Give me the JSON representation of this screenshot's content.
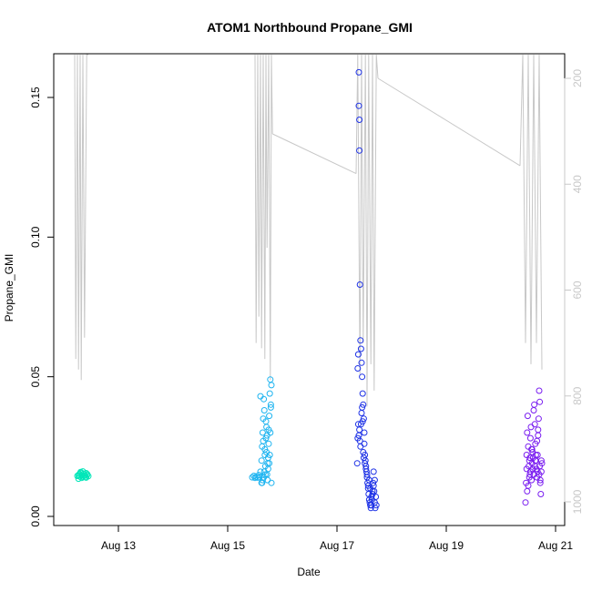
{
  "chart_data": {
    "type": "scatter",
    "title": "ATOM1 Northbound Propane_GMI",
    "xlabel": "Date",
    "ylabel": "Propane_GMI",
    "x_range_days": [
      12.1,
      21.2
    ],
    "x_ticks": [
      {
        "day": 13,
        "label": "Aug 13"
      },
      {
        "day": 15,
        "label": "Aug 15"
      },
      {
        "day": 17,
        "label": "Aug 17"
      },
      {
        "day": 19,
        "label": "Aug 19"
      },
      {
        "day": 21,
        "label": "Aug 21"
      }
    ],
    "ylim": [
      0.0,
      0.165
    ],
    "y_ticks": [
      {
        "value": 0.0,
        "label": "0.00"
      },
      {
        "value": 0.05,
        "label": "0.05"
      },
      {
        "value": 0.1,
        "label": "0.10"
      },
      {
        "value": 0.15,
        "label": "0.15"
      }
    ],
    "y2_reversed": true,
    "y2lim": [
      1020,
      150
    ],
    "y2_ticks": [
      {
        "value": 200,
        "label": "200"
      },
      {
        "value": 400,
        "label": "400"
      },
      {
        "value": 600,
        "label": "600"
      },
      {
        "value": 800,
        "label": "800"
      },
      {
        "value": 1000,
        "label": "1000"
      }
    ],
    "colors": {
      "group1": "#00E6B8",
      "group2": "#1EB4F0",
      "group3": "#1E32E6",
      "group4": "#7A1EF0",
      "line": "#C8C8C8",
      "secondary_axis": "#C8C8C8"
    },
    "groups": [
      {
        "color_key": "group1",
        "x_days": [
          12.25,
          12.27,
          12.29,
          12.31,
          12.33,
          12.35,
          12.37,
          12.39,
          12.41,
          12.43,
          12.45,
          12.27,
          12.31,
          12.35,
          12.39,
          12.43,
          12.29,
          12.33,
          12.37,
          12.41
        ],
        "y": [
          0.0145,
          0.0148,
          0.0143,
          0.0156,
          0.015,
          0.0142,
          0.0153,
          0.0147,
          0.0139,
          0.0151,
          0.0144,
          0.0135,
          0.0159,
          0.0161,
          0.0141,
          0.0149,
          0.0152,
          0.0138,
          0.0146,
          0.0155
        ]
      },
      {
        "color_key": "group2",
        "x_days": [
          15.45,
          15.48,
          15.5,
          15.52,
          15.55,
          15.57,
          15.58,
          15.6,
          15.62,
          15.63,
          15.64,
          15.65,
          15.66,
          15.67,
          15.68,
          15.69,
          15.7,
          15.71,
          15.72,
          15.73,
          15.74,
          15.75,
          15.76,
          15.77,
          15.78,
          15.79,
          15.8,
          15.62,
          15.64,
          15.66,
          15.68,
          15.7,
          15.72,
          15.74,
          15.76,
          15.78,
          15.8,
          15.6,
          15.63,
          15.67,
          15.71,
          15.75,
          15.79,
          15.65,
          15.69,
          15.73,
          15.77
        ],
        "y": [
          0.014,
          0.0145,
          0.0138,
          0.0142,
          0.0139,
          0.0148,
          0.014,
          0.016,
          0.02,
          0.025,
          0.03,
          0.035,
          0.042,
          0.038,
          0.022,
          0.018,
          0.028,
          0.032,
          0.015,
          0.013,
          0.021,
          0.026,
          0.036,
          0.044,
          0.049,
          0.04,
          0.012,
          0.012,
          0.013,
          0.014,
          0.024,
          0.034,
          0.029,
          0.017,
          0.019,
          0.03,
          0.047,
          0.043,
          0.012,
          0.016,
          0.023,
          0.031,
          0.039,
          0.027,
          0.015,
          0.019,
          0.022
        ]
      },
      {
        "color_key": "group3",
        "x_days": [
          17.37,
          17.38,
          17.39,
          17.4,
          17.4,
          17.41,
          17.41,
          17.42,
          17.43,
          17.44,
          17.45,
          17.46,
          17.47,
          17.48,
          17.49,
          17.5,
          17.5,
          17.51,
          17.52,
          17.53,
          17.54,
          17.55,
          17.56,
          17.57,
          17.58,
          17.59,
          17.6,
          17.61,
          17.62,
          17.63,
          17.64,
          17.65,
          17.66,
          17.67,
          17.68,
          17.69,
          17.7,
          17.72,
          17.4,
          17.41,
          17.42,
          17.43,
          17.44,
          17.45,
          17.46,
          17.47,
          17.48,
          17.49,
          17.51,
          17.53,
          17.55,
          17.57,
          17.59,
          17.61,
          17.63,
          17.65,
          17.67,
          17.69,
          17.71,
          17.38,
          17.39
        ],
        "y": [
          0.019,
          0.028,
          0.033,
          0.159,
          0.147,
          0.142,
          0.131,
          0.083,
          0.063,
          0.06,
          0.055,
          0.05,
          0.044,
          0.04,
          0.035,
          0.03,
          0.026,
          0.022,
          0.02,
          0.018,
          0.016,
          0.015,
          0.012,
          0.01,
          0.008,
          0.006,
          0.005,
          0.004,
          0.003,
          0.004,
          0.006,
          0.009,
          0.012,
          0.016,
          0.009,
          0.005,
          0.003,
          0.004,
          0.029,
          0.031,
          0.027,
          0.025,
          0.033,
          0.037,
          0.039,
          0.034,
          0.023,
          0.021,
          0.019,
          0.017,
          0.014,
          0.011,
          0.013,
          0.01,
          0.007,
          0.008,
          0.011,
          0.013,
          0.007,
          0.053,
          0.058
        ]
      },
      {
        "color_key": "group4",
        "x_days": [
          20.45,
          20.46,
          20.47,
          20.48,
          20.49,
          20.5,
          20.51,
          20.52,
          20.53,
          20.54,
          20.55,
          20.56,
          20.57,
          20.58,
          20.59,
          20.6,
          20.61,
          20.62,
          20.63,
          20.64,
          20.65,
          20.66,
          20.67,
          20.68,
          20.69,
          20.7,
          20.71,
          20.72,
          20.73,
          20.74,
          20.75,
          20.48,
          20.5,
          20.52,
          20.54,
          20.56,
          20.58,
          20.6,
          20.62,
          20.64,
          20.66,
          20.68,
          20.7,
          20.72,
          20.74,
          20.47,
          20.53,
          20.57,
          20.63,
          20.67,
          20.71
        ],
        "y": [
          0.005,
          0.012,
          0.022,
          0.03,
          0.036,
          0.025,
          0.018,
          0.02,
          0.015,
          0.028,
          0.032,
          0.024,
          0.019,
          0.023,
          0.021,
          0.038,
          0.04,
          0.033,
          0.026,
          0.02,
          0.017,
          0.014,
          0.022,
          0.029,
          0.035,
          0.045,
          0.041,
          0.012,
          0.008,
          0.016,
          0.019,
          0.009,
          0.011,
          0.014,
          0.016,
          0.013,
          0.017,
          0.015,
          0.018,
          0.022,
          0.027,
          0.031,
          0.015,
          0.013,
          0.02,
          0.017,
          0.021,
          0.024,
          0.02,
          0.016,
          0.018
        ]
      }
    ],
    "secondary_line": {
      "segments": [
        {
          "x_days": [
            12.2,
            12.22,
            12.25,
            12.27,
            12.3,
            12.32,
            12.35,
            12.38,
            12.42,
            12.45
          ],
          "y2": [
            150,
            730,
            150,
            750,
            150,
            770,
            150,
            690,
            150,
            150
          ]
        },
        {
          "x_days": [
            15.5,
            15.52,
            15.55,
            15.57,
            15.6,
            15.62,
            15.65,
            15.68,
            15.7,
            15.72,
            15.75,
            15.78,
            15.8,
            15.82
          ],
          "y2": [
            150,
            700,
            150,
            650,
            150,
            710,
            150,
            730,
            150,
            520,
            150,
            770,
            150,
            305
          ]
        },
        {
          "x_days": [
            15.82,
            17.35
          ],
          "y2": [
            305,
            380
          ]
        },
        {
          "x_days": [
            17.35,
            17.38,
            17.42,
            17.45,
            17.48,
            17.52,
            17.55,
            17.58,
            17.62,
            17.65,
            17.68,
            17.72,
            17.75
          ],
          "y2": [
            380,
            150,
            760,
            150,
            700,
            150,
            820,
            150,
            740,
            150,
            790,
            150,
            200
          ]
        },
        {
          "x_days": [
            17.75,
            20.35
          ],
          "y2": [
            200,
            365
          ]
        },
        {
          "x_days": [
            20.35,
            20.4,
            20.45,
            20.5,
            20.55,
            20.6,
            20.65,
            20.7,
            20.75
          ],
          "y2": [
            365,
            150,
            700,
            150,
            740,
            150,
            700,
            150,
            750
          ]
        }
      ]
    }
  }
}
